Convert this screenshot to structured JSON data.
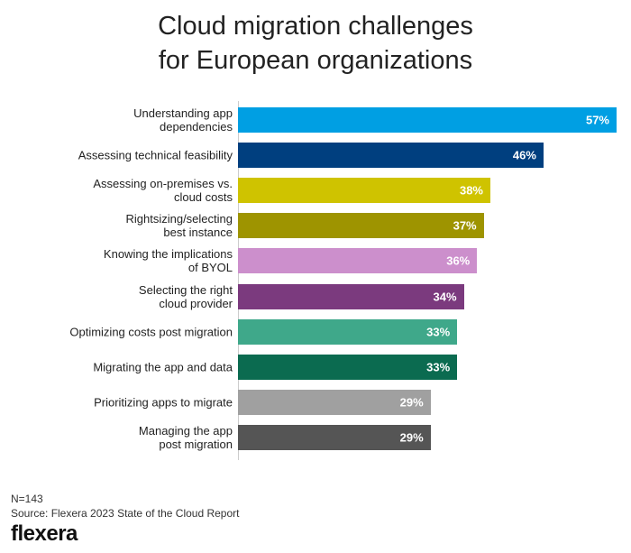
{
  "chart_data": {
    "type": "bar",
    "orientation": "horizontal",
    "title": "Cloud migration challenges\nfor European organizations",
    "categories": [
      "Understanding app\ndependencies",
      "Assessing technical feasibility",
      "Assessing on-premises vs.\ncloud costs",
      "Rightsizing/selecting\nbest instance",
      "Knowing the implications\nof BYOL",
      "Selecting the right\ncloud provider",
      "Optimizing costs post migration",
      "Migrating the app and data",
      "Prioritizing apps to migrate",
      "Managing the app\npost migration"
    ],
    "values": [
      57,
      46,
      38,
      37,
      36,
      34,
      33,
      33,
      29,
      29
    ],
    "value_labels": [
      "57%",
      "46%",
      "38%",
      "37%",
      "36%",
      "34%",
      "33%",
      "33%",
      "29%",
      "29%"
    ],
    "colors": [
      "#009fe3",
      "#003f7f",
      "#cfc300",
      "#9e9400",
      "#cc8fcc",
      "#7b3a7e",
      "#3fa88a",
      "#0b6b50",
      "#a0a0a0",
      "#555555"
    ],
    "note": "N=143",
    "source": "Source: Flexera 2023 State of the Cloud Report",
    "logo": "flexera"
  }
}
